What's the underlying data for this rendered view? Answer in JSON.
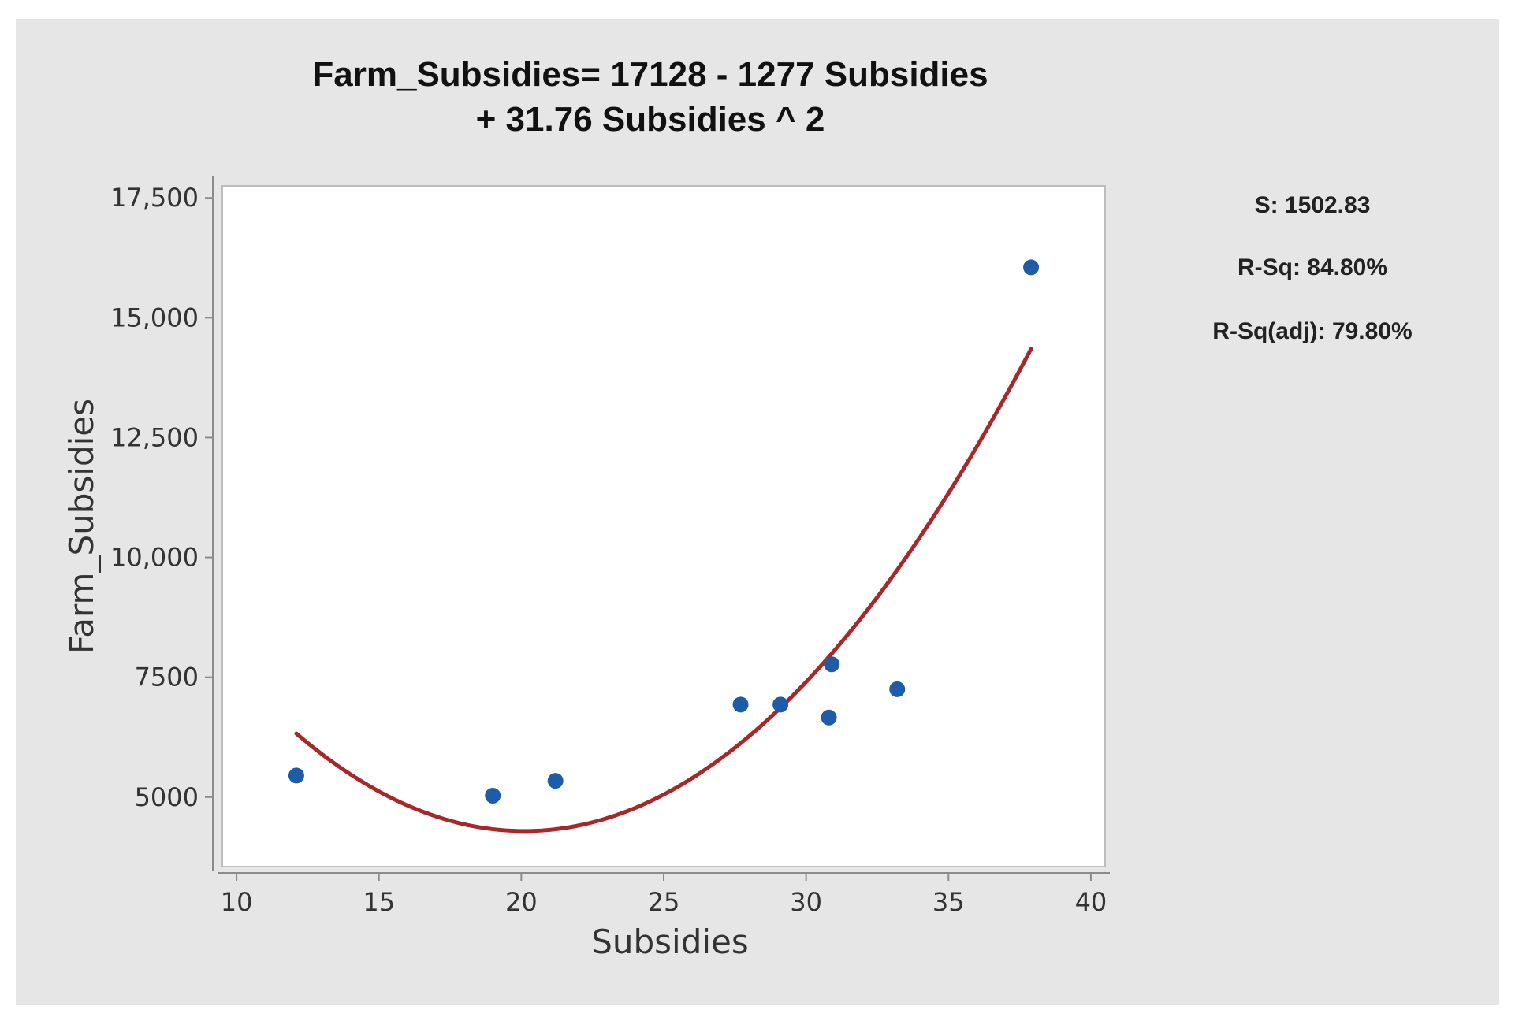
{
  "chart_data": {
    "type": "scatter",
    "title_lines": [
      "Farm_Subsidies= 17128 - 1277 Subsidies",
      "+ 31.76 Subsidies ^ 2"
    ],
    "xlabel": "Subsidies",
    "ylabel": "Farm_Subsidies",
    "xlim": [
      9.5,
      40.5
    ],
    "ylim": [
      3550,
      17750
    ],
    "x_ticks": [
      10,
      15,
      20,
      25,
      30,
      35,
      40
    ],
    "x_tick_labels": [
      "10",
      "15",
      "20",
      "25",
      "30",
      "35",
      "40"
    ],
    "y_ticks": [
      5000,
      7500,
      10000,
      12500,
      15000,
      17500
    ],
    "y_tick_labels": [
      "5000",
      "7500",
      "10,000",
      "12,500",
      "15,000",
      "17,500"
    ],
    "grid": false,
    "points": [
      {
        "x": 12.1,
        "y": 5450
      },
      {
        "x": 19.0,
        "y": 5030
      },
      {
        "x": 21.2,
        "y": 5340
      },
      {
        "x": 27.7,
        "y": 6930
      },
      {
        "x": 29.1,
        "y": 6930
      },
      {
        "x": 30.8,
        "y": 6660
      },
      {
        "x": 30.9,
        "y": 7770
      },
      {
        "x": 33.2,
        "y": 7250
      },
      {
        "x": 37.9,
        "y": 16050
      }
    ],
    "fit": {
      "type": "quadratic",
      "intercept": 17128,
      "linear": -1277,
      "quadratic": 31.76,
      "x_range": [
        12.1,
        37.9
      ]
    },
    "stats": [
      "S: 1502.83",
      "R-Sq: 84.80%",
      "R-Sq(adj): 79.80%"
    ],
    "colors": {
      "points": "#1f5ca8",
      "fit_line": "#a8282a",
      "frame_background": "#e6e6e6",
      "plot_background": "#ffffff"
    }
  }
}
